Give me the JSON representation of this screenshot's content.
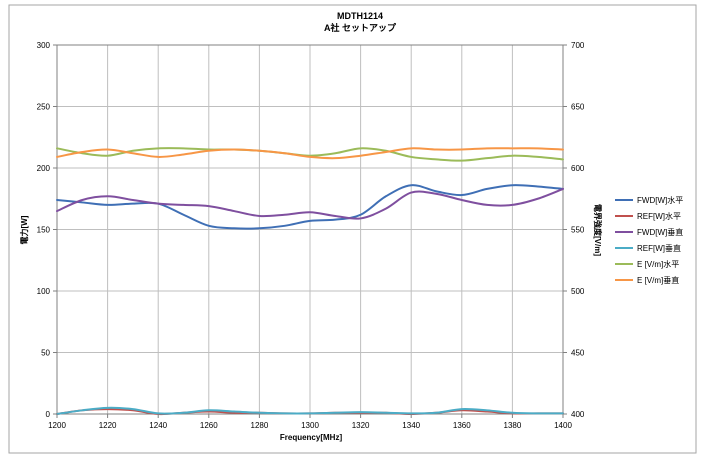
{
  "chart_data": {
    "type": "line",
    "title": "MDTH1214",
    "subtitle": "A社 セットアップ",
    "xlabel": "Frequency[MHz]",
    "ylabel_left": "電力[W]",
    "ylabel_right": "電界強度[V/m]",
    "x": [
      1200,
      1210,
      1220,
      1230,
      1240,
      1250,
      1260,
      1270,
      1280,
      1290,
      1300,
      1310,
      1320,
      1330,
      1340,
      1350,
      1360,
      1370,
      1380,
      1390,
      1400
    ],
    "x_ticks": [
      "1200",
      "1220",
      "1240",
      "1260",
      "1280",
      "1300",
      "1320",
      "1340",
      "1360",
      "1380",
      "1400"
    ],
    "xlim": [
      1200,
      1400
    ],
    "ylim_left": [
      0,
      300
    ],
    "y_ticks_left": [
      "0",
      "50",
      "100",
      "150",
      "200",
      "250",
      "300"
    ],
    "ylim_right": [
      400,
      700
    ],
    "y_ticks_right": [
      "400",
      "450",
      "500",
      "550",
      "600",
      "650",
      "700"
    ],
    "grid": true,
    "legend_position": "right",
    "series": [
      {
        "name": "FWD[W]水平",
        "axis": "left",
        "color": "#3f6fb5",
        "values": [
          174,
          172,
          170,
          171,
          171,
          162,
          153,
          151,
          151,
          153,
          157,
          158,
          162,
          177,
          186,
          181,
          178,
          183,
          186,
          185,
          183
        ]
      },
      {
        "name": "REF[W]水平",
        "axis": "left",
        "color": "#c0504d",
        "values": [
          0,
          3,
          4,
          3,
          0,
          1,
          2,
          1,
          1,
          0.5,
          0.5,
          1,
          1,
          1,
          0,
          1,
          3,
          2,
          0.5,
          0.5,
          0.5
        ]
      },
      {
        "name": "FWD[W]垂直",
        "axis": "left",
        "color": "#7f4f9f",
        "values": [
          165,
          174,
          177,
          174,
          171,
          170,
          169,
          165,
          161,
          162,
          164,
          161,
          159,
          167,
          180,
          179,
          174,
          170,
          170,
          175,
          183
        ]
      },
      {
        "name": "REF[W]垂直",
        "axis": "left",
        "color": "#4bacc6",
        "values": [
          0,
          3,
          5,
          4,
          0.5,
          1,
          3,
          2,
          1,
          0.5,
          0.5,
          1,
          1.5,
          1,
          0.5,
          1,
          4,
          3,
          1,
          0.5,
          0.5
        ]
      },
      {
        "name": "E [V/m]水平",
        "axis": "right",
        "color": "#9bbb59",
        "values": [
          616,
          612,
          610,
          614,
          616,
          616,
          615,
          615,
          614,
          612,
          610,
          612,
          616,
          614,
          609,
          607,
          606,
          608,
          610,
          609,
          607
        ]
      },
      {
        "name": "E [V/m]垂直",
        "axis": "right",
        "color": "#f79646",
        "values": [
          609,
          613,
          615,
          612,
          609,
          611,
          614,
          615,
          614,
          612,
          609,
          608,
          610,
          613,
          616,
          615,
          615,
          616,
          616,
          616,
          615
        ]
      }
    ]
  }
}
